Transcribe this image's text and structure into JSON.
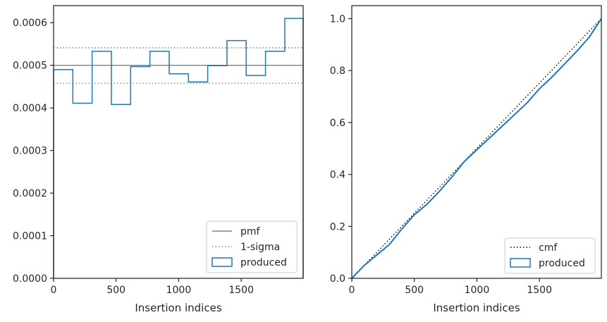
{
  "chart_data": [
    {
      "type": "step",
      "xlabel": "Insertion indices",
      "ylabel": "",
      "xlim": [
        0,
        1995
      ],
      "ylim": [
        0,
        0.00064
      ],
      "xticks": [
        "0",
        "500",
        "1000",
        "1500"
      ],
      "xtick_values": [
        0,
        500,
        1000,
        1500
      ],
      "yticks": [
        "0.0000",
        "0.0001",
        "0.0002",
        "0.0003",
        "0.0004",
        "0.0005",
        "0.0006"
      ],
      "ytick_values": [
        0,
        0.0001,
        0.0002,
        0.0003,
        0.0004,
        0.0005,
        0.0006
      ],
      "grid": false,
      "legend_position": "lower-right",
      "pmf_value": 0.0005,
      "sigma_band": [
        0.000458,
        0.000541
      ],
      "histogram": {
        "name": "produced",
        "bin_edges": [
          0,
          154,
          308,
          462,
          616,
          770,
          924,
          1078,
          1232,
          1386,
          1540,
          1694,
          1848,
          1995
        ],
        "values": [
          0.00049,
          0.000411,
          0.000533,
          0.000408,
          0.000497,
          0.000533,
          0.00048,
          0.000461,
          0.000499,
          0.000558,
          0.000476,
          0.000533,
          0.00061
        ]
      },
      "legend": [
        {
          "label": "pmf",
          "style": "solid",
          "color": "#808080"
        },
        {
          "label": "1-sigma",
          "style": "dotted",
          "color": "#808080"
        },
        {
          "label": "produced",
          "style": "box",
          "color": "#1f77b4"
        }
      ]
    },
    {
      "type": "line",
      "xlabel": "Insertion indices",
      "ylabel": "",
      "xlim": [
        0,
        1995
      ],
      "ylim": [
        0,
        1.05
      ],
      "xticks": [
        "0",
        "500",
        "1000",
        "1500"
      ],
      "xtick_values": [
        0,
        500,
        1000,
        1500
      ],
      "yticks": [
        "0.0",
        "0.2",
        "0.4",
        "0.6",
        "0.8",
        "1.0"
      ],
      "ytick_values": [
        0,
        0.2,
        0.4,
        0.6,
        0.8,
        1.0
      ],
      "grid": false,
      "legend_position": "lower-right",
      "series": [
        {
          "name": "cmf",
          "style": "dotted",
          "color": "#000000",
          "x": [
            0,
            1995
          ],
          "y": [
            0,
            1.0
          ]
        },
        {
          "name": "produced",
          "style": "solid",
          "color": "#1f77b4",
          "x": [
            0,
            100,
            200,
            300,
            400,
            500,
            600,
            700,
            800,
            900,
            1000,
            1100,
            1200,
            1300,
            1400,
            1500,
            1600,
            1700,
            1800,
            1900,
            1995
          ],
          "y": [
            0,
            0.05,
            0.09,
            0.13,
            0.19,
            0.245,
            0.285,
            0.335,
            0.39,
            0.45,
            0.495,
            0.54,
            0.585,
            0.63,
            0.675,
            0.73,
            0.775,
            0.825,
            0.875,
            0.93,
            1.0
          ]
        }
      ],
      "legend": [
        {
          "label": "cmf",
          "style": "dotted",
          "color": "#000000"
        },
        {
          "label": "produced",
          "style": "box",
          "color": "#1f77b4"
        }
      ]
    }
  ]
}
